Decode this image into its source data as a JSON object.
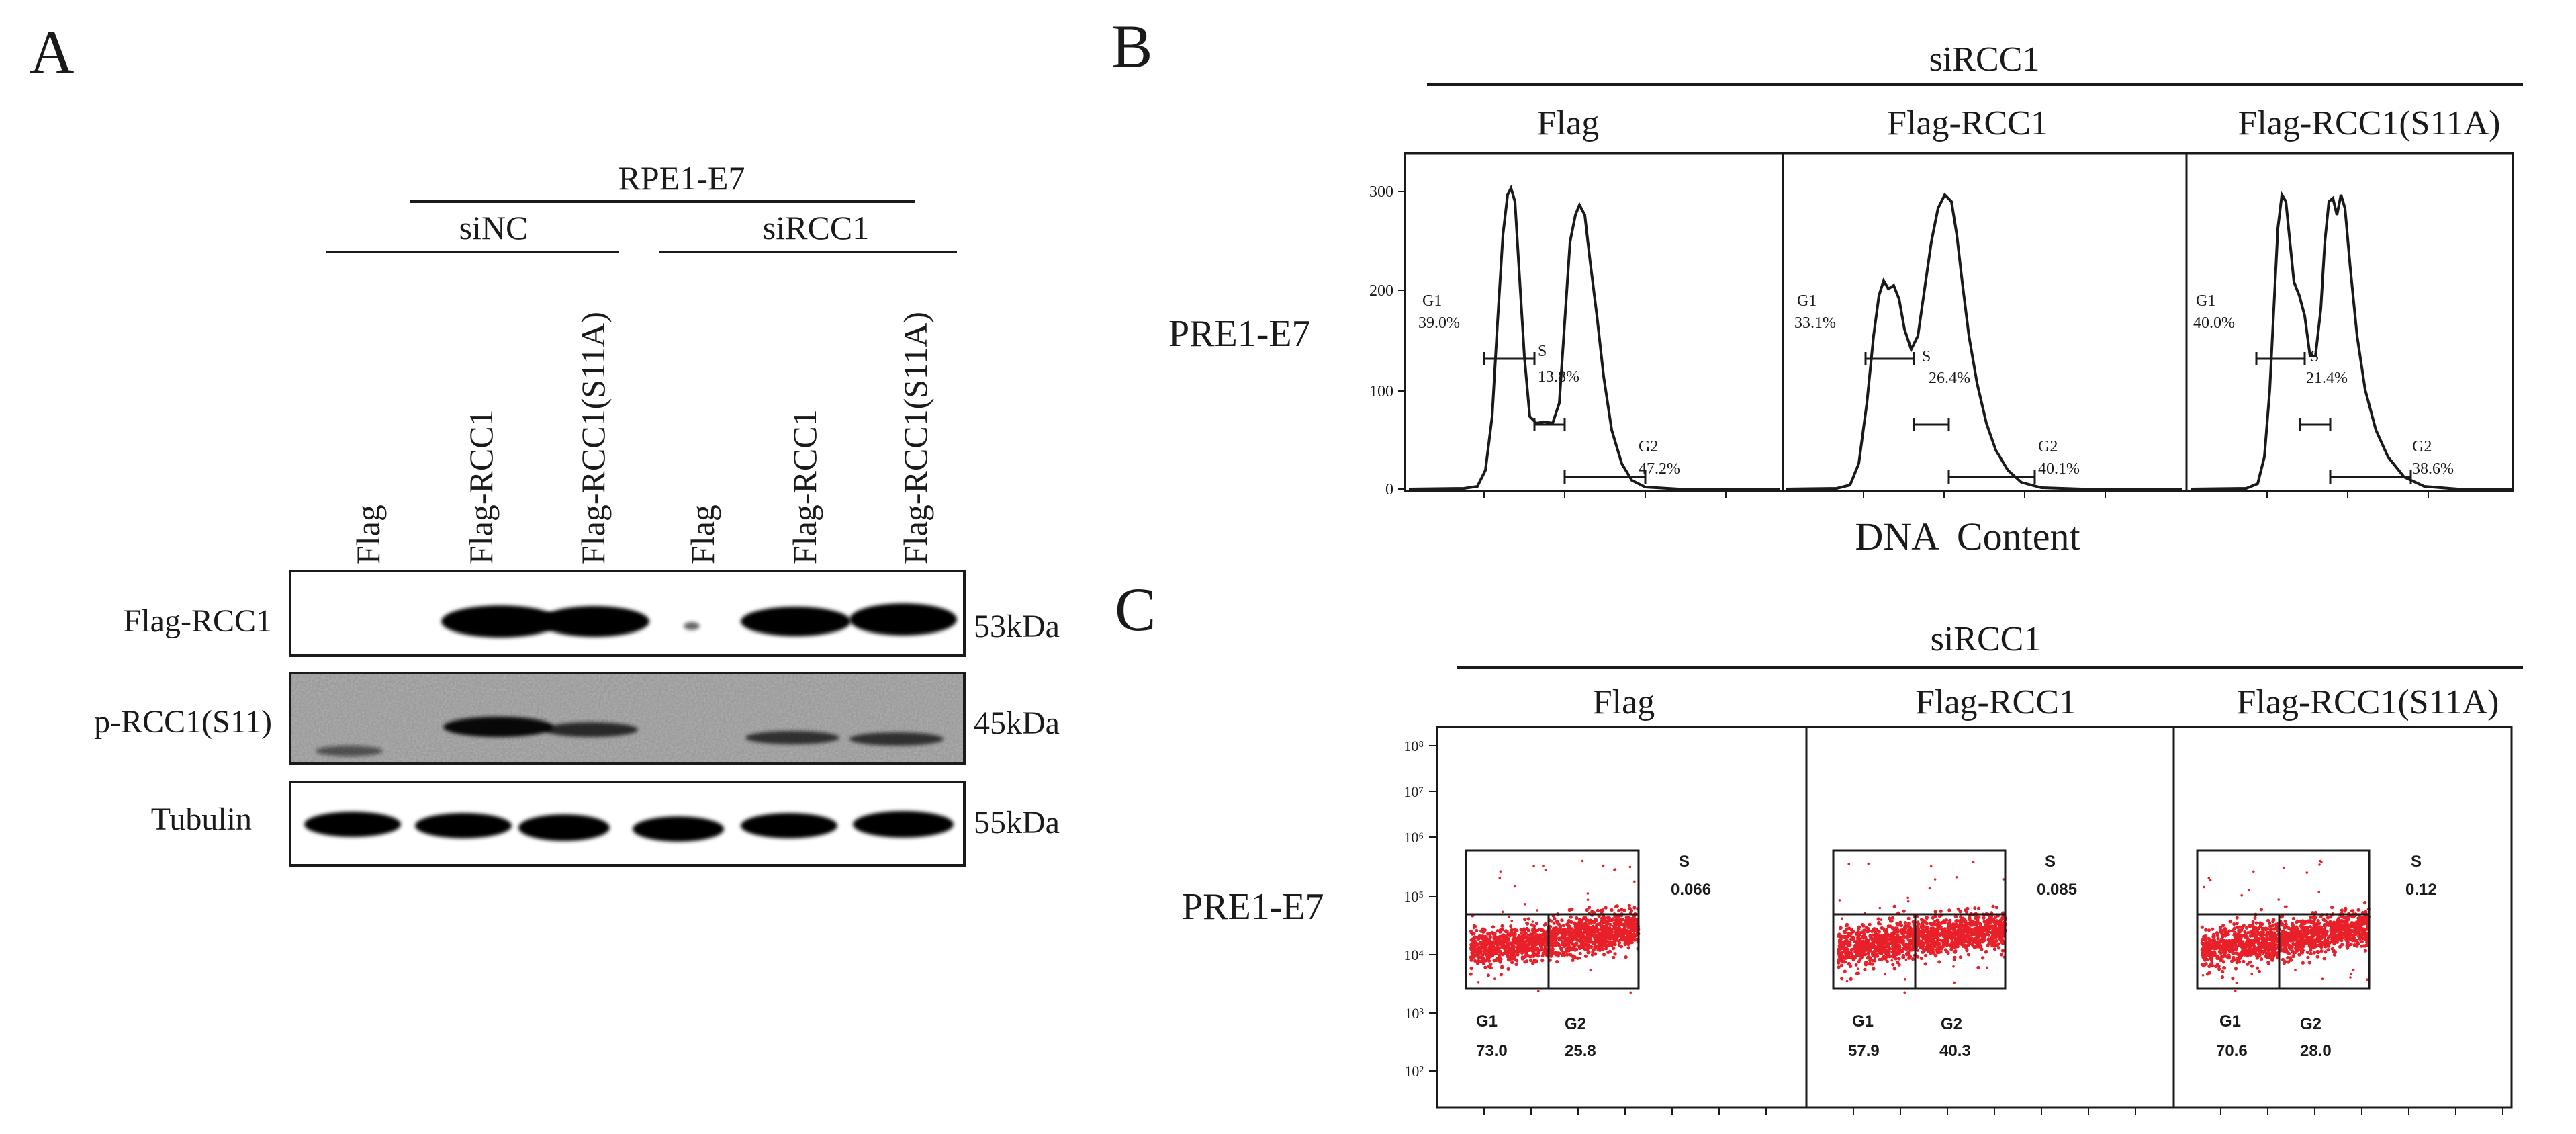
{
  "panel_a": {
    "letter": "A",
    "cell_line": "RPE1-E7",
    "group_left": "siNC",
    "group_right": "siRCC1",
    "lane_labels": [
      "Flag",
      "Flag-RCC1",
      "Flag-RCC1(S11A)",
      "Flag",
      "Flag-RCC1",
      "Flag-RCC1(S11A)"
    ],
    "blots": [
      {
        "name": "Flag-RCC1",
        "size": "53kDa",
        "band_intensity": [
          0.0,
          1.0,
          1.0,
          0.05,
          1.0,
          1.0
        ]
      },
      {
        "name": "p-RCC1(S11)",
        "size": "45kDa",
        "band_intensity": [
          0.15,
          0.85,
          0.6,
          0.05,
          0.55,
          0.5
        ]
      },
      {
        "name": "Tubulin",
        "size": "55kDa",
        "band_intensity": [
          1.0,
          1.0,
          1.0,
          1.0,
          1.0,
          1.0
        ]
      }
    ]
  },
  "panel_b": {
    "letter": "B",
    "condition": "siRCC1",
    "row_label": "PRE1-E7",
    "x_axis_label": "DNA  Content",
    "y_ticks": [
      "300",
      "200",
      "100",
      "0"
    ],
    "columns": [
      {
        "title": "Flag",
        "g1_label": "G1",
        "g1_value": "39.0%",
        "s_label": "S",
        "s_value": "13.8%",
        "g2_label": "G2",
        "g2_value": "47.2%"
      },
      {
        "title": "Flag-RCC1",
        "g1_label": "G1",
        "g1_value": "33.1%",
        "s_label": "S",
        "s_value": "26.4%",
        "g2_label": "G2",
        "g2_value": "40.1%"
      },
      {
        "title": "Flag-RCC1(S11A)",
        "g1_label": "G1",
        "g1_value": "40.0%",
        "s_label": "S",
        "s_value": "21.4%",
        "g2_label": "G2",
        "g2_value": "38.6%"
      }
    ]
  },
  "panel_c": {
    "letter": "C",
    "condition": "siRCC1",
    "row_label": "PRE1-E7",
    "y_ticks": [
      "10⁸",
      "10⁷",
      "10⁶",
      "10⁵",
      "10⁴",
      "10³",
      "10²"
    ],
    "columns": [
      {
        "title": "Flag",
        "s_label": "S",
        "s_value": "0.066",
        "g1_label": "G1",
        "g1_value": "73.0",
        "g2_label": "G2",
        "g2_value": "25.8"
      },
      {
        "title": "Flag-RCC1",
        "s_label": "S",
        "s_value": "0.085",
        "g1_label": "G1",
        "g1_value": "57.9",
        "g2_label": "G2",
        "g2_value": "40.3"
      },
      {
        "title": "Flag-RCC1(S11A)",
        "s_label": "S",
        "s_value": "0.12",
        "g1_label": "G1",
        "g1_value": "70.6",
        "g2_label": "G2",
        "g2_value": "28.0"
      }
    ]
  },
  "colors": {
    "dots": "#e8202a",
    "ink": "#1a1a1a"
  }
}
